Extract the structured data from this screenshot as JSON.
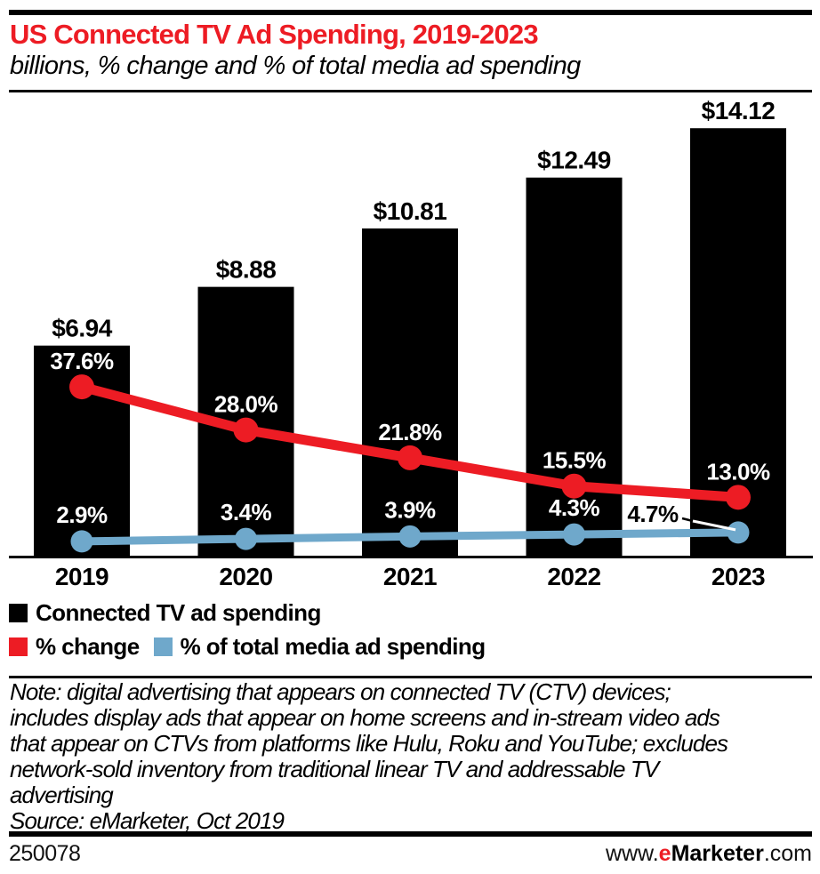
{
  "header": {
    "title": "US Connected TV Ad Spending, 2019-2023",
    "subtitle": "billions, % change and % of total media ad spending"
  },
  "colors": {
    "accent_red": "#ED1C24",
    "accent_blue": "#6FA8CB",
    "bar_black": "#000000"
  },
  "chart_data": {
    "type": "bar",
    "title": "US Connected TV Ad Spending, 2019-2023",
    "xlabel": "",
    "ylabel": "",
    "grid": false,
    "legend_position": "bottom-left",
    "categories": [
      "2019",
      "2020",
      "2021",
      "2022",
      "2023"
    ],
    "series": [
      {
        "name": "Connected TV ad spending",
        "type": "bar",
        "unit": "USD billions",
        "values": [
          6.94,
          8.88,
          10.81,
          12.49,
          14.12
        ],
        "labels": [
          "$6.94",
          "$8.88",
          "$10.81",
          "$12.49",
          "$14.12"
        ],
        "color": "#000000",
        "label_color": "#000000",
        "ylim": [
          0,
          15.3
        ]
      },
      {
        "name": "% change",
        "type": "line",
        "unit": "percent",
        "values": [
          37.6,
          28.0,
          21.8,
          15.5,
          13.0
        ],
        "labels": [
          "37.6%",
          "28.0%",
          "21.8%",
          "15.5%",
          "13.0%"
        ],
        "color": "#ED1C24",
        "label_color": "#FFFFFF"
      },
      {
        "name": "% of total media ad spending",
        "type": "line",
        "unit": "percent",
        "values": [
          2.9,
          3.4,
          3.9,
          4.3,
          4.7
        ],
        "labels": [
          "2.9%",
          "3.4%",
          "3.9%",
          "4.3%",
          "4.7%"
        ],
        "color": "#6FA8CB",
        "label_color": "#FFFFFF",
        "callout_label_color": "#000000"
      }
    ]
  },
  "legend": {
    "items": [
      {
        "label": "Connected TV ad spending",
        "color": "#000000"
      },
      {
        "label": "% change",
        "color": "#ED1C24"
      },
      {
        "label": "% of total media ad spending",
        "color": "#6FA8CB"
      }
    ]
  },
  "note_lines": [
    "Note: digital advertising that appears on connected TV (CTV) devices;",
    "includes display ads that appear on home screens and in-stream video ads",
    "that appear on CTVs from platforms like Hulu, Roku and YouTube; excludes",
    "network-sold inventory from traditional linear TV and addressable TV",
    "advertising"
  ],
  "source": "Source: eMarketer, Oct 2019",
  "footer": {
    "chart_id": "250078",
    "site": {
      "prefix": "www.",
      "e": "e",
      "name": "Marketer",
      "suffix": ".com"
    }
  }
}
